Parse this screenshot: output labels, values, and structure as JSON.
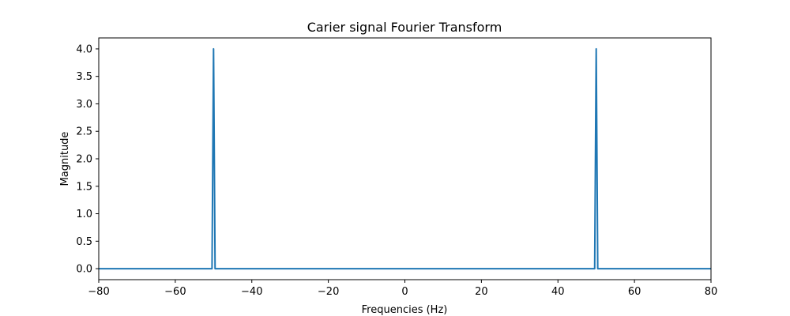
{
  "chart_data": {
    "type": "line",
    "title": "Carier signal Fourier Transform",
    "xlabel": "Frequencies (Hz)",
    "ylabel": "Magnitude",
    "xlim": [
      -80,
      80
    ],
    "ylim": [
      -0.2,
      4.2
    ],
    "xticks": [
      -80,
      -60,
      -40,
      -20,
      0,
      20,
      40,
      60,
      80
    ],
    "xtick_labels": [
      "−80",
      "−60",
      "−40",
      "−20",
      "0",
      "20",
      "40",
      "60",
      "80"
    ],
    "yticks": [
      0.0,
      0.5,
      1.0,
      1.5,
      2.0,
      2.5,
      3.0,
      3.5,
      4.0
    ],
    "ytick_labels": [
      "0.0",
      "0.5",
      "1.0",
      "1.5",
      "2.0",
      "2.5",
      "3.0",
      "3.5",
      "4.0"
    ],
    "grid": false,
    "series": [
      {
        "color": "#1f77b4",
        "x": [
          -80,
          -50.4,
          -50,
          -49.6,
          49.6,
          50,
          50.4,
          80
        ],
        "y": [
          0,
          0,
          4.0,
          0,
          0,
          4.0,
          0,
          0
        ]
      }
    ]
  }
}
